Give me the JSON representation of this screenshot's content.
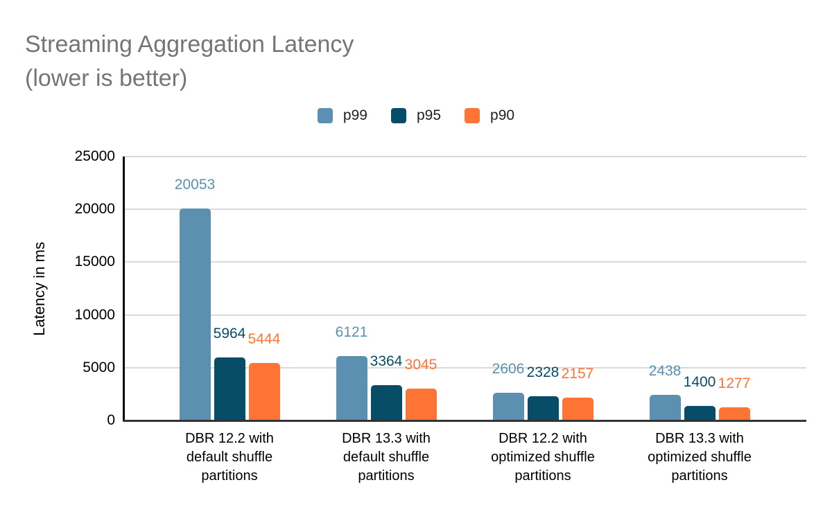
{
  "title": {
    "line1": "Streaming Aggregation Latency",
    "line2": "(lower is better)",
    "color": "#757575"
  },
  "legend": [
    {
      "label": "p99",
      "color": "#5b90b0"
    },
    {
      "label": "p95",
      "color": "#084d68"
    },
    {
      "label": "p90",
      "color": "#fd7434"
    }
  ],
  "chart_data": {
    "type": "bar",
    "title": "Streaming Aggregation Latency (lower is better)",
    "ylabel": "Latency in ms",
    "xlabel": "",
    "ylim": [
      0,
      25000
    ],
    "yticks": [
      0,
      5000,
      10000,
      15000,
      20000,
      25000
    ],
    "grid": true,
    "legend_position": "top",
    "value_labels": true,
    "categories": [
      "DBR 12.2 with default shuffle partitions",
      "DBR 13.3 with default shuffle partitions",
      "DBR 12.2 with optimized shuffle partitions",
      "DBR 13.3 with optimized shuffle partitions"
    ],
    "categories_wrapped": [
      [
        "DBR 12.2 with",
        "default shuffle",
        "partitions"
      ],
      [
        "DBR 13.3 with",
        "default shuffle",
        "partitions"
      ],
      [
        "DBR 12.2 with",
        "optimized shuffle",
        "partitions"
      ],
      [
        "DBR 13.3 with",
        "optimized shuffle",
        "partitions"
      ]
    ],
    "series": [
      {
        "name": "p99",
        "color": "#5b90b0",
        "values": [
          20053,
          6121,
          2606,
          2438
        ]
      },
      {
        "name": "p95",
        "color": "#084d68",
        "values": [
          5964,
          3364,
          2328,
          1400
        ]
      },
      {
        "name": "p90",
        "color": "#fd7434",
        "values": [
          5444,
          3045,
          2157,
          1277
        ]
      }
    ]
  },
  "colors": {
    "gridline": "#d9d9d9",
    "axis_line": "#000000",
    "baseline": "#333333",
    "tick_text": "#000000",
    "title_text": "#757575"
  }
}
